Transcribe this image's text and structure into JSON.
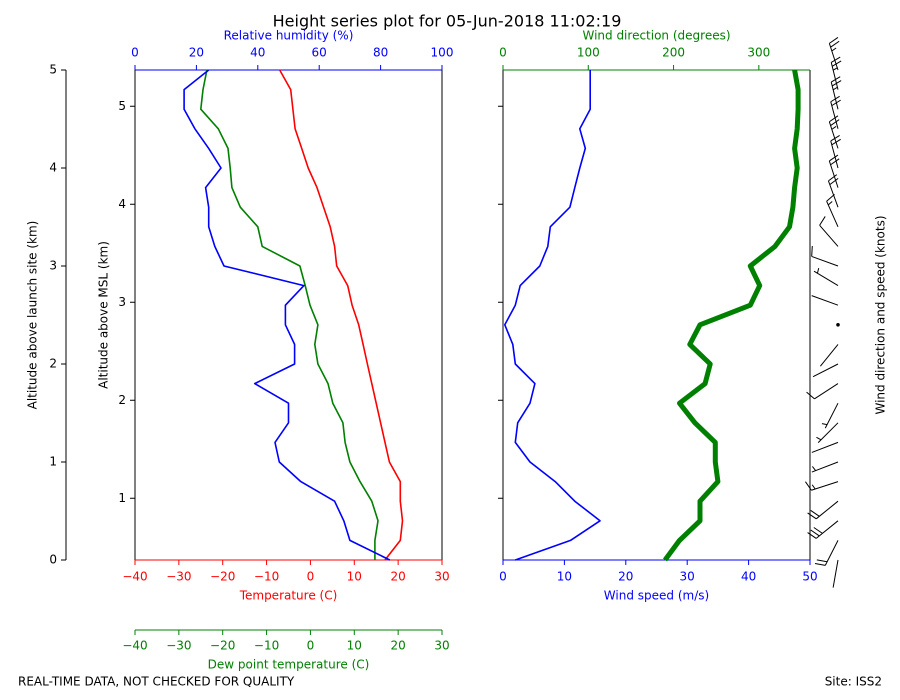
{
  "chart_data": [
    {
      "type": "line",
      "title": "Height series plot for 05-Jun-2018 11:02:19",
      "y_label": "Altitude above launch site (km)",
      "y2_label": "Altitude above MSL (km)",
      "ylim": [
        0,
        5
      ],
      "yticks": [
        0,
        1,
        2,
        3,
        4,
        5
      ],
      "y2lim": [
        0.37,
        5.37
      ],
      "y2ticks": [
        1,
        2,
        3,
        4,
        5
      ],
      "altitude": [
        0,
        0.2,
        0.4,
        0.6,
        0.8,
        1.0,
        1.2,
        1.4,
        1.6,
        1.8,
        2.0,
        2.2,
        2.4,
        2.6,
        2.8,
        3.0,
        3.2,
        3.4,
        3.6,
        3.8,
        4.0,
        4.2,
        4.4,
        4.6,
        4.8,
        5.0
      ],
      "xlim": [
        -40,
        30
      ],
      "xticks": [
        {
          "value": -40,
          "label": "−40"
        },
        {
          "value": -30,
          "label": "−30"
        },
        {
          "value": -20,
          "label": "−20"
        },
        {
          "value": -10,
          "label": "−10"
        },
        0,
        10,
        20,
        30
      ],
      "x2lim": [
        0,
        100
      ],
      "x2ticks": [
        0,
        20,
        40,
        60,
        80,
        100
      ],
      "x3lim": [
        -40,
        30
      ],
      "x3ticks": [
        {
          "value": -40,
          "label": "−40"
        },
        {
          "value": -30,
          "label": "−30"
        },
        {
          "value": -20,
          "label": "−20"
        },
        {
          "value": -10,
          "label": "−10"
        },
        0,
        10,
        20,
        30
      ],
      "series": [
        {
          "name": "Temperature (C)",
          "color": "#ff0000",
          "axis": "x",
          "values": [
            17,
            20.5,
            21,
            20.5,
            20.5,
            18,
            17,
            16,
            15,
            14,
            13,
            12,
            11,
            9.5,
            8.5,
            6,
            5.5,
            4.5,
            3,
            1.5,
            -0.5,
            -2,
            -3.5,
            -4,
            -4.5,
            -7
          ]
        },
        {
          "name": "Dew point temperature (C)",
          "color": "#008000",
          "axis": "x3",
          "values": [
            14.7,
            14.7,
            15.4,
            14,
            11.3,
            9,
            7.9,
            7.4,
            5.1,
            4,
            1.7,
            1,
            1.7,
            -0.1,
            -1.2,
            -2.4,
            -11,
            -12,
            -16,
            -17.9,
            -18.3,
            -18.8,
            -21,
            -25,
            -24.5,
            -23.6
          ]
        },
        {
          "name": "Relative humidity (%)",
          "color": "#0000ff",
          "axis": "x2",
          "values": [
            83,
            70,
            68,
            65,
            54,
            47,
            45.6,
            50,
            50,
            39,
            52,
            52,
            49,
            49,
            55,
            29,
            26,
            24,
            24,
            23,
            28,
            24,
            19.5,
            16,
            16,
            24
          ]
        }
      ]
    },
    {
      "type": "line",
      "altitude": [
        0,
        0.2,
        0.4,
        0.6,
        0.8,
        1.0,
        1.2,
        1.4,
        1.6,
        1.8,
        2.0,
        2.2,
        2.4,
        2.6,
        2.8,
        3.0,
        3.2,
        3.4,
        3.6,
        3.8,
        4.0,
        4.2,
        4.4,
        4.6,
        4.8,
        5.0
      ],
      "xlim": [
        0,
        50
      ],
      "xticks": [
        0,
        10,
        20,
        30,
        40,
        50
      ],
      "x2lim": [
        0,
        360
      ],
      "x2ticks": [
        0,
        100,
        200,
        300
      ],
      "series": [
        {
          "name": "Wind speed (m/s)",
          "color": "#0000ff",
          "axis": "x",
          "values": [
            2,
            11,
            15.8,
            11.7,
            8.5,
            4.4,
            2,
            2.4,
            4.4,
            5.2,
            2,
            1.6,
            0.3,
            2,
            2.8,
            6,
            7.3,
            7.7,
            10.9,
            11.7,
            12.5,
            13.4,
            12.5,
            14.2,
            14.2,
            14.2
          ]
        },
        {
          "name": "Wind direction (degrees)",
          "color": "#008000",
          "axis": "x2",
          "values": [
            190,
            207,
            231,
            231,
            252,
            249,
            249,
            225,
            207,
            237,
            243,
            219,
            231,
            290,
            301,
            290,
            319,
            336,
            340,
            342,
            345,
            342,
            345,
            346,
            346,
            342
          ]
        }
      ],
      "barbs": {
        "label": "Wind direction and speed (knots)",
        "speed": [
          4,
          21,
          31,
          23,
          17,
          9,
          4,
          5,
          9,
          10,
          4,
          3,
          1,
          4,
          5,
          12,
          14,
          15,
          21,
          23,
          24,
          26,
          24,
          28,
          28,
          28
        ]
      }
    }
  ],
  "footer": {
    "left": "REAL-TIME DATA, NOT CHECKED FOR QUALITY",
    "right": "Site: ISS2"
  }
}
